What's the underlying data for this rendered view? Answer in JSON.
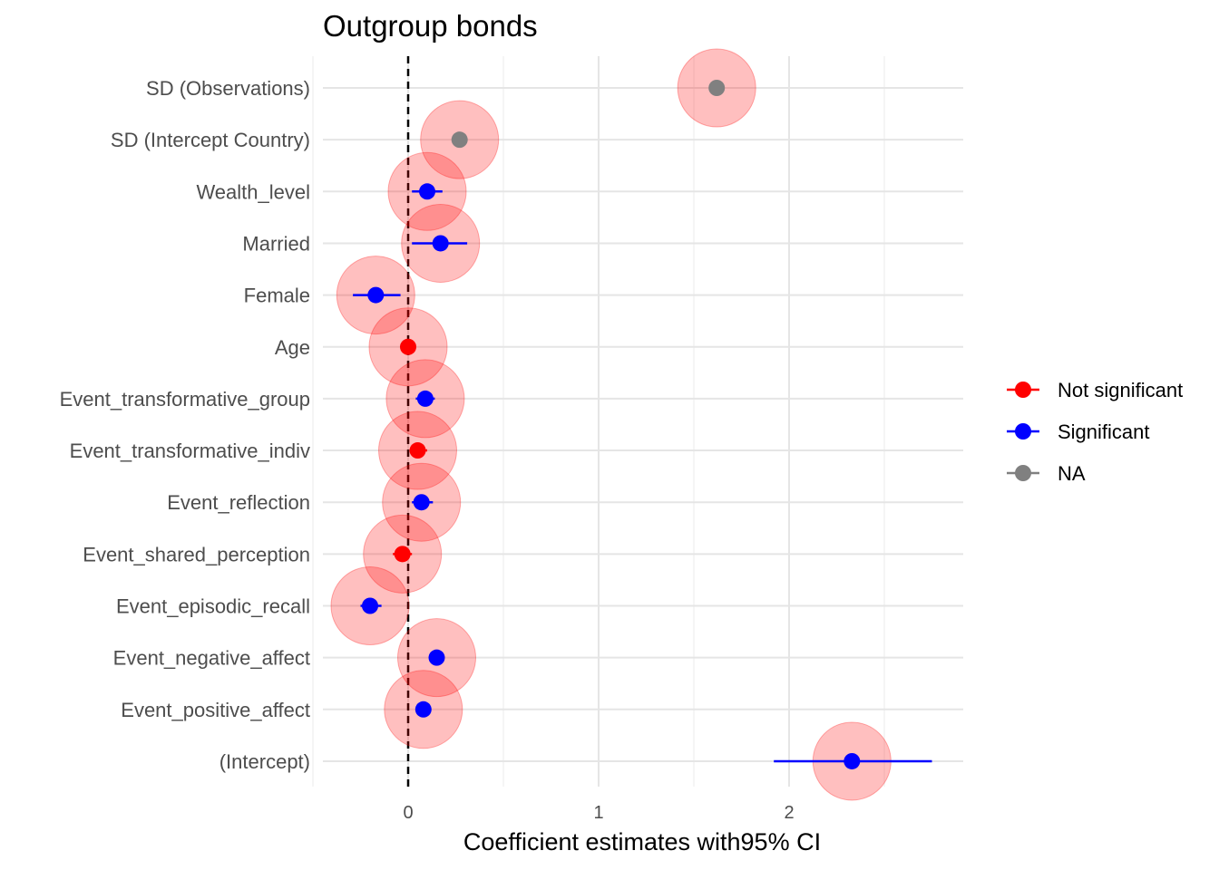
{
  "chart_data": {
    "type": "scatter",
    "subtype": "coefficient-plot",
    "title": "Outgroup bonds",
    "xlabel": "Coefficient estimates with95% CI",
    "ylabel": "",
    "xlim": [
      -0.45,
      2.9
    ],
    "x_ticks": [
      0,
      1,
      2
    ],
    "x_tick_labels": [
      "0",
      "1",
      "2"
    ],
    "minor_gridlines": [
      -0.5,
      0.5,
      1.5,
      2.5
    ],
    "reference_line": {
      "x": 0,
      "style": "dashed",
      "color": "#000000"
    },
    "grid": true,
    "legend_position": "right",
    "legend": [
      {
        "label": "Not significant",
        "color": "#ff0000"
      },
      {
        "label": "Significant",
        "color": "#0000ff"
      },
      {
        "label": "NA",
        "color": "#808080"
      }
    ],
    "halo_color": "#ff0000",
    "terms": [
      {
        "label": "SD (Observations)",
        "estimate": 1.62,
        "ci_low": null,
        "ci_high": null,
        "group": "NA",
        "color": "#808080"
      },
      {
        "label": "SD (Intercept Country)",
        "estimate": 0.27,
        "ci_low": null,
        "ci_high": null,
        "group": "NA",
        "color": "#808080"
      },
      {
        "label": "Wealth_level",
        "estimate": 0.1,
        "ci_low": 0.02,
        "ci_high": 0.18,
        "group": "Significant",
        "color": "#0000ff"
      },
      {
        "label": "Married",
        "estimate": 0.17,
        "ci_low": 0.02,
        "ci_high": 0.31,
        "group": "Significant",
        "color": "#0000ff"
      },
      {
        "label": "Female",
        "estimate": -0.17,
        "ci_low": -0.29,
        "ci_high": -0.04,
        "group": "Significant",
        "color": "#0000ff"
      },
      {
        "label": "Age",
        "estimate": 0.0,
        "ci_low": -0.01,
        "ci_high": 0.01,
        "group": "Not significant",
        "color": "#ff0000"
      },
      {
        "label": "Event_transformative_group",
        "estimate": 0.09,
        "ci_low": 0.04,
        "ci_high": 0.14,
        "group": "Significant",
        "color": "#0000ff"
      },
      {
        "label": "Event_transformative_indiv",
        "estimate": 0.05,
        "ci_low": 0.01,
        "ci_high": 0.1,
        "group": "Not significant",
        "color": "#ff0000"
      },
      {
        "label": "Event_reflection",
        "estimate": 0.07,
        "ci_low": 0.02,
        "ci_high": 0.13,
        "group": "Significant",
        "color": "#0000ff"
      },
      {
        "label": "Event_shared_perception",
        "estimate": -0.03,
        "ci_low": -0.08,
        "ci_high": 0.02,
        "group": "Not significant",
        "color": "#ff0000"
      },
      {
        "label": "Event_episodic_recall",
        "estimate": -0.2,
        "ci_low": -0.25,
        "ci_high": -0.14,
        "group": "Significant",
        "color": "#0000ff"
      },
      {
        "label": "Event_negative_affect",
        "estimate": 0.15,
        "ci_low": 0.12,
        "ci_high": 0.19,
        "group": "Significant",
        "color": "#0000ff"
      },
      {
        "label": "Event_positive_affect",
        "estimate": 0.08,
        "ci_low": 0.05,
        "ci_high": 0.11,
        "group": "Significant",
        "color": "#0000ff"
      },
      {
        "label": "(Intercept)",
        "estimate": 2.33,
        "ci_low": 1.92,
        "ci_high": 2.75,
        "group": "Significant",
        "color": "#0000ff"
      }
    ]
  }
}
